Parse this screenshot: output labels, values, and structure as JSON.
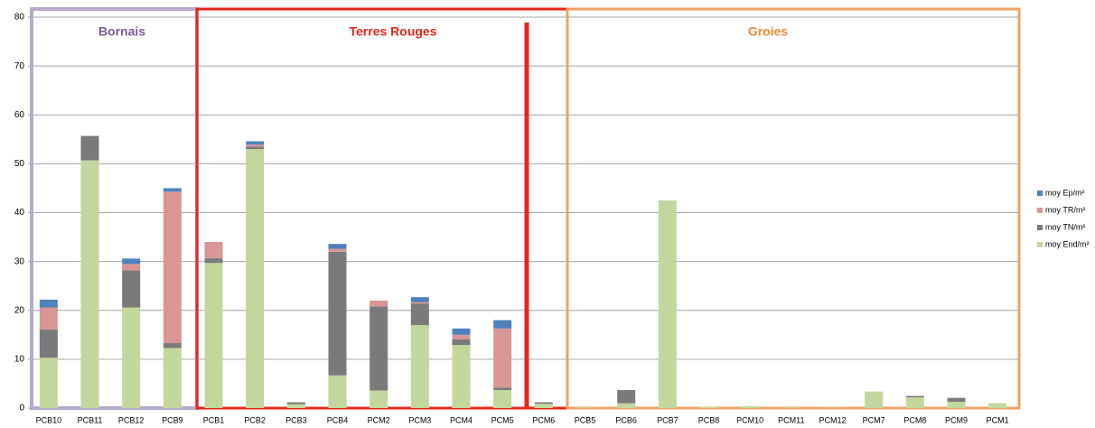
{
  "chart_data": {
    "type": "bar",
    "stacked": true,
    "categories": [
      "PCB10",
      "PCB11",
      "PCB12",
      "PCB9",
      "PCB1",
      "PCB2",
      "PCB3",
      "PCB4",
      "PCM2",
      "PCM3",
      "PCM4",
      "PCM5",
      "PCM6",
      "PCB5",
      "PCB6",
      "PCB7",
      "PCB8",
      "PCM10",
      "PCM11",
      "PCM12",
      "PCM7",
      "PCM8",
      "PCM9",
      "PCM1"
    ],
    "series": [
      {
        "name": "moy End/m²",
        "color": "#c3d69b",
        "values": [
          10.3,
          50.7,
          20.6,
          12.3,
          29.7,
          53.0,
          0.8,
          6.7,
          3.6,
          17.0,
          12.9,
          3.7,
          0.9,
          0.1,
          1.0,
          42.5,
          0.2,
          0.4,
          0.1,
          0.1,
          3.4,
          2.2,
          1.3,
          1.0
        ]
      },
      {
        "name": "moy TN/m²",
        "color": "#7a7a7a",
        "values": [
          5.8,
          5.0,
          7.6,
          1.0,
          1.0,
          0.5,
          0.4,
          25.3,
          17.2,
          4.4,
          1.2,
          0.5,
          0.3,
          0,
          2.7,
          0,
          0,
          0,
          0,
          0,
          0,
          0.3,
          0.8,
          0
        ]
      },
      {
        "name": "moy TR/m²",
        "color": "#d99694",
        "values": [
          4.5,
          0,
          1.3,
          31.0,
          3.3,
          0.4,
          0,
          0.6,
          1.2,
          0.3,
          0.9,
          12.1,
          0,
          0,
          0,
          0,
          0,
          0,
          0,
          0,
          0,
          0,
          0,
          0
        ]
      },
      {
        "name": "moy Ep/m²",
        "color": "#4f81bd",
        "values": [
          1.6,
          0,
          1.1,
          0.7,
          0,
          0.7,
          0,
          1.0,
          0,
          1.0,
          1.3,
          1.7,
          0,
          0,
          0,
          0,
          0,
          0,
          0,
          0,
          0,
          0,
          0,
          0
        ]
      }
    ],
    "ylim": [
      0,
      80
    ],
    "yticks": [
      0,
      10,
      20,
      30,
      40,
      50,
      60,
      70,
      80
    ],
    "grid": true,
    "legend": "right",
    "annotations": [
      {
        "text": "Bornais",
        "color": "#7a5c9e"
      },
      {
        "text": "Terres Rouges",
        "color": "#e8261b"
      },
      {
        "text": "Groies",
        "color": "#e8893c"
      }
    ]
  }
}
